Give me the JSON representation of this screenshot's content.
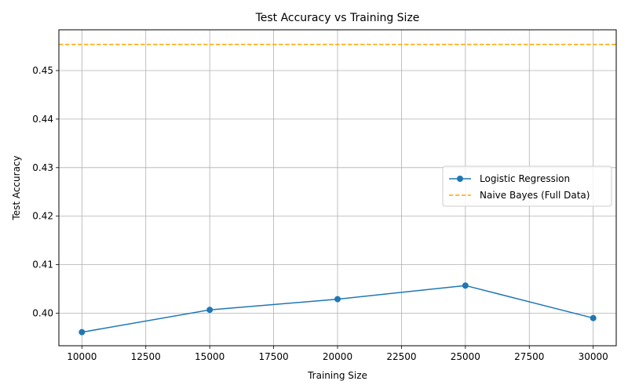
{
  "chart_data": {
    "type": "line",
    "title": "Test Accuracy vs Training Size",
    "xlabel": "Training Size",
    "ylabel": "Test Accuracy",
    "xlim": [
      9100,
      30900
    ],
    "ylim": [
      0.3933,
      0.4584
    ],
    "x_ticks": [
      10000,
      12500,
      15000,
      17500,
      20000,
      22500,
      25000,
      27500,
      30000
    ],
    "y_ticks": [
      0.4,
      0.41,
      0.42,
      0.43,
      0.44,
      0.45
    ],
    "grid": true,
    "legend_position": "center-right",
    "series": [
      {
        "name": "Logistic Regression",
        "color": "#1f77b4",
        "style": "solid",
        "marker": "circle",
        "x": [
          10000,
          15000,
          20000,
          25000,
          30000
        ],
        "y": [
          0.3961,
          0.4007,
          0.4029,
          0.4057,
          0.399
        ]
      },
      {
        "name": "Naive Bayes (Full Data)",
        "color": "#ffa500",
        "style": "dashed",
        "marker": "none",
        "hline": 0.4554
      }
    ]
  }
}
